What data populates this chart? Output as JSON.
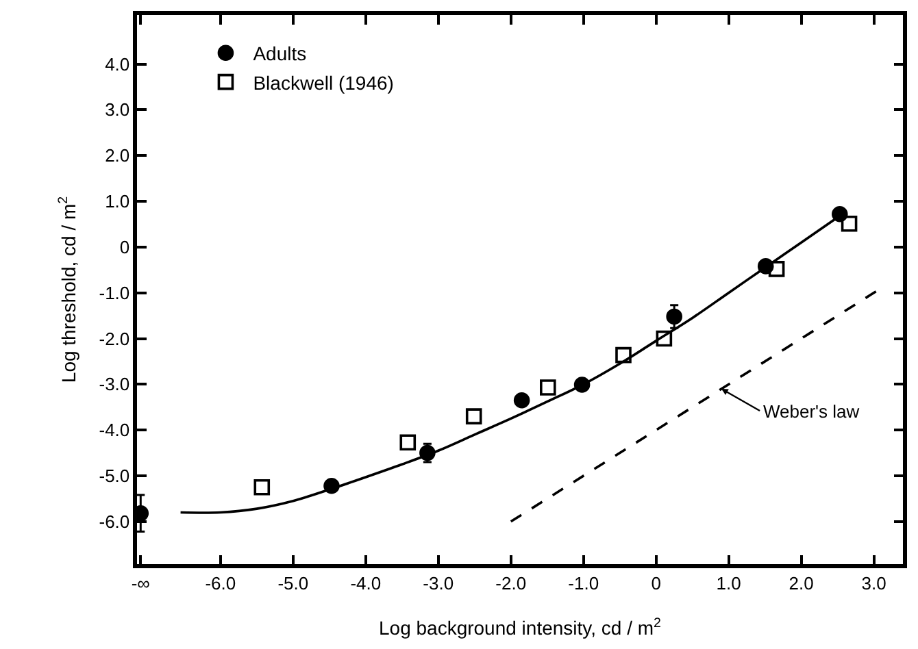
{
  "chart_data": {
    "type": "scatter",
    "xlabel": "Log background intensity, cd / m$^{2}$",
    "ylabel": "Log threshold, cd / m$^{2}$",
    "xlim": [
      -7.15,
      3.4
    ],
    "ylim": [
      -6.93,
      5.07
    ],
    "xticks": [
      {
        "value": -7.1,
        "label": "-∞"
      },
      {
        "value": -6,
        "label": "-6.0"
      },
      {
        "value": -5,
        "label": "-5.0"
      },
      {
        "value": -4,
        "label": "-4.0"
      },
      {
        "value": -3,
        "label": "-3.0"
      },
      {
        "value": -2,
        "label": "-2.0"
      },
      {
        "value": -1,
        "label": "-1.0"
      },
      0,
      {
        "value": 1,
        "label": "1.0"
      },
      {
        "value": 2,
        "label": "2.0"
      },
      {
        "value": 3,
        "label": "3.0"
      }
    ],
    "yticks": [
      {
        "value": 4,
        "label": "4.0"
      },
      {
        "value": 3,
        "label": "3.0"
      },
      {
        "value": 2,
        "label": "2.0"
      },
      {
        "value": 1,
        "label": "1.0"
      },
      0,
      {
        "value": -1,
        "label": "-1.0"
      },
      {
        "value": -2,
        "label": "-2.0"
      },
      {
        "value": -3,
        "label": "-3.0"
      },
      {
        "value": -4,
        "label": "-4.0"
      },
      {
        "value": -5,
        "label": "-5.0"
      },
      {
        "value": -6,
        "label": "-6.0"
      }
    ],
    "legend": "top left",
    "series": [
      {
        "name": "Adults",
        "marker": "circle",
        "color": "#000000",
        "x": [
          -7.1,
          -4.47,
          -3.15,
          -1.85,
          -1.02,
          0.25,
          1.51,
          2.53
        ],
        "values": [
          -5.82,
          -5.22,
          -4.5,
          -3.35,
          -3.01,
          -1.52,
          -0.42,
          0.72
        ],
        "errors": [
          0.4,
          null,
          0.2,
          null,
          null,
          0.25,
          null,
          null
        ]
      },
      {
        "name": "Blackwell (1946)",
        "marker": "square",
        "color": "#000000",
        "x": [
          -5.43,
          -3.42,
          -2.51,
          -1.49,
          -0.45,
          0.11,
          1.66,
          2.66
        ],
        "values": [
          -5.25,
          -4.27,
          -3.7,
          -3.07,
          -2.36,
          -2.0,
          -0.48,
          0.51
        ]
      },
      {
        "type": "line",
        "line_style": "solid",
        "color": "#000000",
        "x": [
          -6.55,
          -6.0,
          -5.5,
          -5.0,
          -4.5,
          -4.0,
          -3.5,
          -3.0,
          -2.5,
          -2.0,
          -1.5,
          -1.0,
          -0.5,
          0.0,
          0.5,
          1.0,
          1.5,
          2.0,
          2.5
        ],
        "values": [
          -5.8,
          -5.8,
          -5.72,
          -5.55,
          -5.3,
          -5.03,
          -4.75,
          -4.45,
          -4.1,
          -3.75,
          -3.38,
          -3.0,
          -2.55,
          -2.05,
          -1.55,
          -1.0,
          -0.45,
          0.1,
          0.65
        ]
      },
      {
        "type": "line",
        "line_style": "dashed",
        "color": "#000000",
        "x": [
          -2.0,
          3.05
        ],
        "values": [
          -6.0,
          -0.95
        ]
      }
    ],
    "annotations": [
      {
        "text": "Weber's law",
        "x": 0.9,
        "y": -3.1
      }
    ]
  }
}
